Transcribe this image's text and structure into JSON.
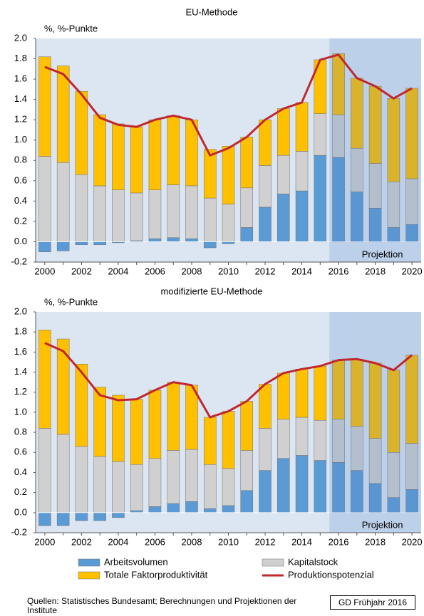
{
  "chart_data": [
    {
      "type": "bar",
      "stacked": true,
      "title": "EU-Methode",
      "y_label": "%, %-Punkte",
      "categories": [
        "2000",
        null,
        "2002",
        null,
        "2004",
        null,
        "2006",
        null,
        "2008",
        null,
        "2010",
        null,
        "2012",
        null,
        "2014",
        null,
        "2016",
        null,
        "2018",
        null,
        "2020"
      ],
      "series": [
        {
          "name": "Arbeitsvolumen",
          "type": "bar",
          "color": "#5b9bd5",
          "values": [
            -0.1,
            -0.09,
            -0.03,
            -0.03,
            -0.01,
            0.01,
            0.03,
            0.04,
            0.03,
            -0.06,
            -0.02,
            0.14,
            0.34,
            0.47,
            0.5,
            0.85,
            0.83,
            0.49,
            0.33,
            0.14,
            0.17
          ]
        },
        {
          "name": "Kapitalstock",
          "type": "bar",
          "color": "#d0d0d0",
          "values": [
            0.84,
            0.78,
            0.66,
            0.55,
            0.51,
            0.47,
            0.48,
            0.52,
            0.52,
            0.43,
            0.37,
            0.39,
            0.41,
            0.38,
            0.39,
            0.41,
            0.42,
            0.43,
            0.44,
            0.45,
            0.45
          ]
        },
        {
          "name": "Totale Faktorproduktivität",
          "type": "bar",
          "color": "#ffc000",
          "values": [
            0.98,
            0.95,
            0.82,
            0.7,
            0.65,
            0.65,
            0.69,
            0.68,
            0.65,
            0.48,
            0.57,
            0.5,
            0.45,
            0.46,
            0.48,
            0.53,
            0.6,
            0.69,
            0.76,
            0.82,
            0.89
          ]
        },
        {
          "name": "Produktionspotenzial",
          "type": "line",
          "color": "#c0282d",
          "values": [
            1.72,
            1.65,
            1.45,
            1.22,
            1.15,
            1.13,
            1.2,
            1.24,
            1.2,
            0.85,
            0.92,
            1.03,
            1.2,
            1.31,
            1.37,
            1.79,
            1.84,
            1.61,
            1.53,
            1.41,
            1.51
          ]
        }
      ],
      "projection": {
        "label": "Projektion",
        "start": "2016"
      },
      "ylim": [
        -0.2,
        2.0
      ],
      "yticks": [
        -0.2,
        {
          "value": 0,
          "label": "0.0"
        },
        0.2,
        0.4,
        0.6,
        0.8,
        {
          "value": 1,
          "label": "1.0"
        },
        1.2,
        1.4,
        1.6,
        1.8,
        {
          "value": 2,
          "label": "2.0"
        }
      ]
    },
    {
      "type": "bar",
      "stacked": true,
      "title": "modifizierte EU-Methode",
      "y_label": "%, %-Punkte",
      "categories": [
        "2000",
        null,
        "2002",
        null,
        "2004",
        null,
        "2006",
        null,
        "2008",
        null,
        "2010",
        null,
        "2012",
        null,
        "2014",
        null,
        "2016",
        null,
        "2018",
        null,
        "2020"
      ],
      "series": [
        {
          "type": "bar",
          "color": "#5b9bd5",
          "values": [
            -0.13,
            -0.13,
            -0.08,
            -0.08,
            -0.05,
            0.02,
            0.06,
            0.09,
            0.11,
            0.04,
            0.07,
            0.22,
            0.42,
            0.54,
            0.57,
            0.52,
            0.5,
            0.42,
            0.29,
            0.15,
            0.23
          ]
        },
        {
          "type": "bar",
          "color": "#d0d0d0",
          "values": [
            0.84,
            0.78,
            0.66,
            0.56,
            0.51,
            0.46,
            0.48,
            0.53,
            0.52,
            0.44,
            0.37,
            0.4,
            0.42,
            0.39,
            0.38,
            0.4,
            0.43,
            0.44,
            0.45,
            0.45,
            0.46
          ]
        },
        {
          "type": "bar",
          "color": "#ffc000",
          "values": [
            0.98,
            0.95,
            0.82,
            0.69,
            0.66,
            0.65,
            0.68,
            0.68,
            0.64,
            0.47,
            0.57,
            0.49,
            0.44,
            0.46,
            0.48,
            0.54,
            0.59,
            0.67,
            0.75,
            0.82,
            0.88
          ]
        },
        {
          "type": "line",
          "color": "#c0282d",
          "values": [
            1.69,
            1.61,
            1.4,
            1.17,
            1.12,
            1.13,
            1.22,
            1.3,
            1.27,
            0.95,
            1.01,
            1.11,
            1.28,
            1.39,
            1.43,
            1.46,
            1.52,
            1.53,
            1.49,
            1.42,
            1.57
          ]
        }
      ],
      "projection": {
        "label": "Projektion",
        "start": "2016"
      },
      "ylim": [
        -0.2,
        2.0
      ],
      "yticks": [
        -0.2,
        {
          "value": 0,
          "label": "0.0"
        },
        0.2,
        0.4,
        0.6,
        0.8,
        {
          "value": 1,
          "label": "1.0"
        },
        1.2,
        1.4,
        1.6,
        1.8,
        {
          "value": 2,
          "label": "2.0"
        }
      ]
    }
  ],
  "source": "Quellen: Statistisches Bundesamt; Berechnungen und Projektionen der Institute",
  "badge": "GD Frühjahr 2016"
}
